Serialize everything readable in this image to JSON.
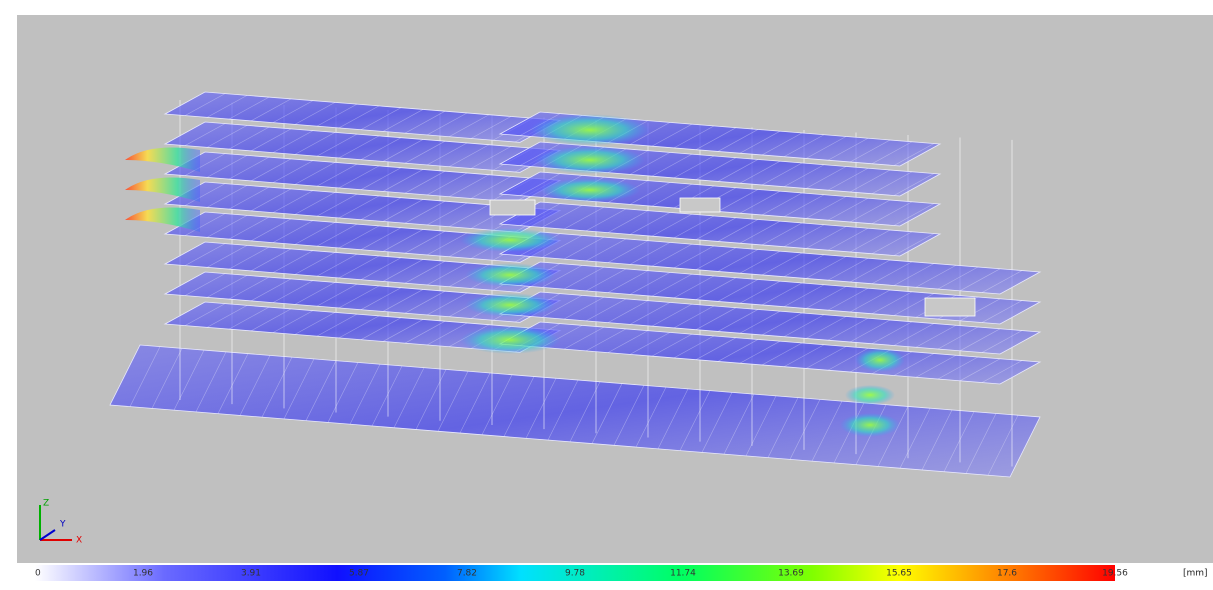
{
  "axes": {
    "z": "Z",
    "y": "Y",
    "x": "X"
  },
  "legend": {
    "ticks": [
      "0",
      "1.96",
      "3.91",
      "5.87",
      "7.82",
      "9.78",
      "11.74",
      "13.69",
      "15.65",
      "17.6",
      "19.56"
    ],
    "unit": "[mm]"
  }
}
